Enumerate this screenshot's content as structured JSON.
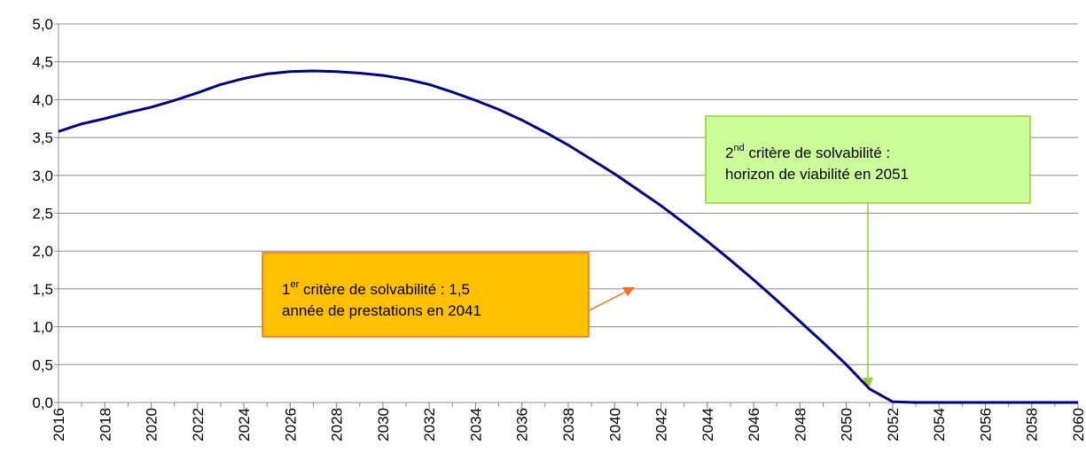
{
  "chart_data": {
    "type": "line",
    "x": [
      2016,
      2017,
      2018,
      2019,
      2020,
      2021,
      2022,
      2023,
      2024,
      2025,
      2026,
      2027,
      2028,
      2029,
      2030,
      2031,
      2032,
      2033,
      2034,
      2035,
      2036,
      2037,
      2038,
      2039,
      2040,
      2041,
      2042,
      2043,
      2044,
      2045,
      2046,
      2047,
      2048,
      2049,
      2050,
      2051,
      2052,
      2053,
      2054,
      2055,
      2056,
      2057,
      2058,
      2059,
      2060
    ],
    "series": [
      {
        "color": "#000080",
        "values": [
          3.58,
          3.68,
          3.75,
          3.83,
          3.9,
          3.99,
          4.09,
          4.2,
          4.28,
          4.34,
          4.37,
          4.38,
          4.37,
          4.35,
          4.32,
          4.27,
          4.2,
          4.1,
          3.99,
          3.87,
          3.73,
          3.57,
          3.4,
          3.21,
          3.02,
          2.81,
          2.6,
          2.37,
          2.13,
          1.88,
          1.62,
          1.35,
          1.07,
          0.79,
          0.5,
          0.18,
          0.01,
          0,
          0,
          0,
          0,
          0,
          0,
          0,
          0
        ]
      }
    ],
    "xlim": [
      2016,
      2060
    ],
    "xticks": [
      2016,
      2018,
      2020,
      2022,
      2024,
      2026,
      2028,
      2030,
      2032,
      2034,
      2036,
      2038,
      2040,
      2042,
      2044,
      2046,
      2048,
      2050,
      2052,
      2054,
      2056,
      2058,
      2060
    ],
    "ylim": [
      0,
      5
    ],
    "yticks": [
      {
        "value": 0,
        "label": "0,0"
      },
      {
        "value": 0.5,
        "label": "0,5"
      },
      {
        "value": 1,
        "label": "1,0"
      },
      {
        "value": 1.5,
        "label": "1,5"
      },
      {
        "value": 2,
        "label": "2,0"
      },
      {
        "value": 2.5,
        "label": "2,5"
      },
      {
        "value": 3,
        "label": "3,0"
      },
      {
        "value": 3.5,
        "label": "3,5"
      },
      {
        "value": 4,
        "label": "4,0"
      },
      {
        "value": 4.5,
        "label": "4,5"
      },
      {
        "value": 5,
        "label": "5,0"
      }
    ],
    "grid": true,
    "annotations": [
      {
        "lines": [
          [
            "1",
            "er",
            " critère de solvabilité : 1,5"
          ],
          [
            "année de prestations en 2041"
          ]
        ]
      },
      {
        "lines": [
          [
            "2",
            "nd",
            " critère de solvabilité :"
          ],
          [
            "horizon de viabilité en 2051"
          ]
        ]
      }
    ]
  }
}
